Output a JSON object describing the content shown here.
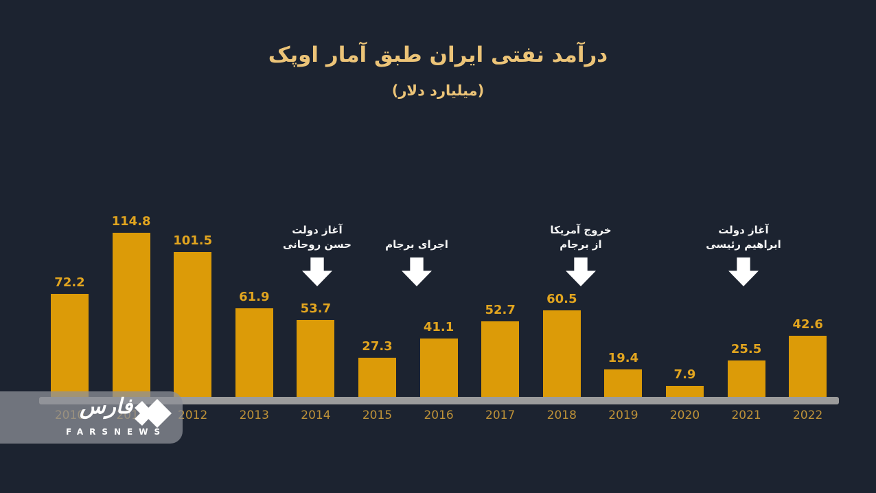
{
  "chart_data": {
    "type": "bar",
    "title": "درآمد نفتی ایران طبق آمار اوپک",
    "subtitle": "(میلیارد دلار)",
    "categories": [
      "2010",
      "2011",
      "2012",
      "2013",
      "2014",
      "2015",
      "2016",
      "2017",
      "2018",
      "2019",
      "2020",
      "2021",
      "2022"
    ],
    "values": [
      72.2,
      114.8,
      101.5,
      61.9,
      53.7,
      27.3,
      41.1,
      52.7,
      60.5,
      19.4,
      7.9,
      25.5,
      42.6
    ],
    "ylim": [
      0,
      120
    ],
    "grid": false,
    "legend": null,
    "bar_color": "#DC9B08",
    "value_label_color": "#E2A51F",
    "year_label_color": "#BE9238",
    "title_color": "#ECC478",
    "background_color": "#1C2330",
    "axis_color": "#9C9C9C",
    "annotations": [
      {
        "lines": [
          "آغاز دولت",
          "حسن روحانی"
        ],
        "x": 462
      },
      {
        "lines": [
          "اجرای برجام"
        ],
        "x": 607
      },
      {
        "lines": [
          "خروج آمریکا",
          "از برجام"
        ],
        "x": 846
      },
      {
        "lines": [
          "آغاز دولت",
          "ابراهیم رئیسی"
        ],
        "x": 1083
      }
    ],
    "annotation_text_color": "#F5F5F5",
    "annotation_arrow_color": "#FFFFFF"
  },
  "logo": {
    "farsi_name": "فارس",
    "latin_name": "FARSNEWS"
  }
}
